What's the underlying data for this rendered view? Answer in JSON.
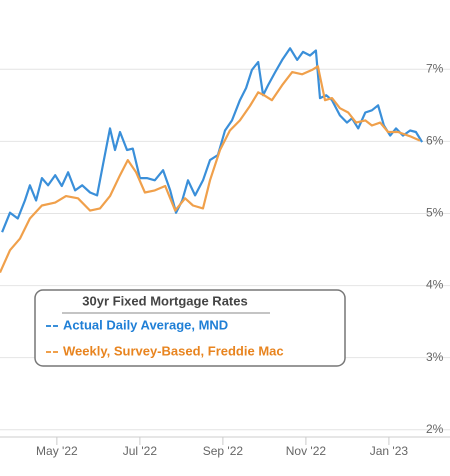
{
  "chart_data": {
    "type": "line",
    "legend_title": "30yr Fixed Mortgage Rates",
    "xlim": [
      2.63,
      12.99
    ],
    "xticks": [
      {
        "value": 4,
        "label": "May '22"
      },
      {
        "value": 6,
        "label": "Jul '22"
      },
      {
        "value": 8,
        "label": "Sep '22"
      },
      {
        "value": 10,
        "label": "Nov '22"
      },
      {
        "value": 12,
        "label": "Jan '23"
      }
    ],
    "ylim": [
      1.9,
      7.96
    ],
    "yticks": [
      {
        "value": 2,
        "label": "2%"
      },
      {
        "value": 3,
        "label": "3%"
      },
      {
        "value": 4,
        "label": "4%"
      },
      {
        "value": 5,
        "label": "5%"
      },
      {
        "value": 6,
        "label": "6%"
      },
      {
        "value": 7,
        "label": "7%"
      }
    ],
    "grid": true,
    "series": [
      {
        "name": "Actual Daily Average, MND",
        "color": "#3a8fd9",
        "x": [
          2.68,
          2.87,
          3.06,
          3.23,
          3.35,
          3.5,
          3.64,
          3.79,
          3.96,
          4.12,
          4.27,
          4.44,
          4.61,
          4.8,
          4.97,
          5.11,
          5.28,
          5.4,
          5.52,
          5.69,
          5.83,
          6.0,
          6.17,
          6.36,
          6.56,
          6.73,
          6.87,
          7.02,
          7.16,
          7.33,
          7.52,
          7.69,
          7.88,
          8.05,
          8.22,
          8.41,
          8.56,
          8.7,
          8.85,
          8.97,
          9.09,
          9.26,
          9.43,
          9.62,
          9.79,
          9.93,
          10.1,
          10.24,
          10.34,
          10.49,
          10.63,
          10.82,
          10.99,
          11.11,
          11.26,
          11.43,
          11.59,
          11.74,
          11.88,
          12.03,
          12.17,
          12.34,
          12.51,
          12.65,
          12.8
        ],
        "values": [
          4.74,
          5.01,
          4.93,
          5.18,
          5.39,
          5.18,
          5.49,
          5.39,
          5.53,
          5.38,
          5.57,
          5.32,
          5.39,
          5.29,
          5.25,
          5.67,
          6.18,
          5.88,
          6.13,
          5.88,
          5.9,
          5.49,
          5.49,
          5.46,
          5.6,
          5.32,
          5.01,
          5.18,
          5.46,
          5.25,
          5.46,
          5.74,
          5.81,
          6.15,
          6.29,
          6.57,
          6.74,
          6.99,
          7.1,
          6.64,
          6.78,
          6.96,
          7.13,
          7.29,
          7.13,
          7.24,
          7.19,
          7.26,
          6.6,
          6.64,
          6.57,
          6.36,
          6.26,
          6.32,
          6.18,
          6.4,
          6.43,
          6.5,
          6.22,
          6.08,
          6.18,
          6.08,
          6.15,
          6.13,
          5.99
        ]
      },
      {
        "name": "Weekly, Survey-Based, Freddie Mac",
        "color": "#f0a04b",
        "x": [
          2.63,
          2.87,
          3.11,
          3.35,
          3.64,
          3.96,
          4.22,
          4.51,
          4.8,
          5.04,
          5.28,
          5.52,
          5.71,
          5.91,
          6.12,
          6.36,
          6.61,
          6.85,
          7.09,
          7.28,
          7.52,
          7.69,
          7.93,
          8.17,
          8.41,
          8.65,
          8.85,
          9.02,
          9.18,
          9.43,
          9.67,
          9.91,
          10.15,
          10.29,
          10.46,
          10.63,
          10.82,
          11.02,
          11.21,
          11.43,
          11.59,
          11.79,
          11.98,
          12.22,
          12.51,
          12.75
        ],
        "values": [
          4.18,
          4.49,
          4.65,
          4.93,
          5.11,
          5.15,
          5.24,
          5.21,
          5.04,
          5.07,
          5.24,
          5.53,
          5.74,
          5.57,
          5.29,
          5.32,
          5.38,
          5.04,
          5.21,
          5.11,
          5.07,
          5.46,
          5.88,
          6.15,
          6.29,
          6.49,
          6.68,
          6.63,
          6.57,
          6.78,
          6.96,
          6.93,
          6.99,
          7.04,
          6.57,
          6.6,
          6.46,
          6.4,
          6.26,
          6.29,
          6.22,
          6.26,
          6.13,
          6.13,
          6.07,
          6.01
        ]
      }
    ]
  }
}
